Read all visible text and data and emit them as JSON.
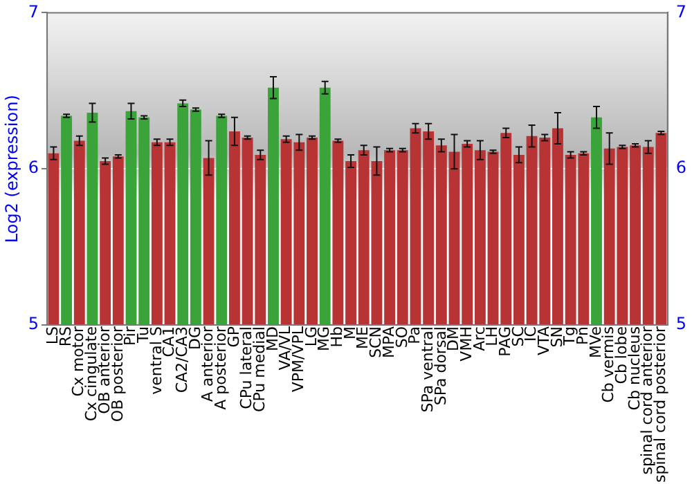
{
  "chart_data": {
    "type": "bar",
    "ylabel": "Log2 (expression)",
    "categories": [
      "LS",
      "RS",
      "Cx motor",
      "Cx cingulate",
      "OB anterior",
      "OB posterior",
      "Pir",
      "Tu",
      "ventral S",
      "CA1",
      "CA2/CA3",
      "DG",
      "A anterior",
      "A posterior",
      "GP",
      "CPu lateral",
      "CPu medial",
      "MD",
      "VA/VL",
      "VPM/VPL",
      "LG",
      "MG",
      "Hb",
      "M",
      "ME",
      "SCN",
      "MPA",
      "SO",
      "Pa",
      "SPa ventral",
      "SPa dorsal",
      "DM",
      "VMH",
      "Arc",
      "LH",
      "PAG",
      "SC",
      "IC",
      "VTA",
      "SN",
      "Tg",
      "Pn",
      "MVe",
      "Cb vermis",
      "Cb lobe",
      "Cb nucleus",
      "spinal cord anterior",
      "spinal cord posterior"
    ],
    "values": [
      6.1,
      6.34,
      6.18,
      6.36,
      6.05,
      6.08,
      6.37,
      6.33,
      6.17,
      6.17,
      6.42,
      6.38,
      6.07,
      6.34,
      6.24,
      6.2,
      6.09,
      6.52,
      6.19,
      6.17,
      6.2,
      6.52,
      6.18,
      6.05,
      6.12,
      6.05,
      6.12,
      6.12,
      6.26,
      6.24,
      6.15,
      6.11,
      6.16,
      6.12,
      6.11,
      6.23,
      6.09,
      6.21,
      6.2,
      6.26,
      6.09,
      6.1,
      6.33,
      6.13,
      6.14,
      6.15,
      6.14,
      6.23
    ],
    "errors": [
      0.04,
      0.01,
      0.03,
      0.06,
      0.02,
      0.01,
      0.05,
      0.01,
      0.02,
      0.02,
      0.02,
      0.01,
      0.11,
      0.01,
      0.09,
      0.01,
      0.03,
      0.07,
      0.02,
      0.05,
      0.01,
      0.04,
      0.01,
      0.04,
      0.03,
      0.09,
      0.01,
      0.01,
      0.03,
      0.05,
      0.04,
      0.11,
      0.02,
      0.06,
      0.01,
      0.03,
      0.05,
      0.07,
      0.02,
      0.1,
      0.02,
      0.01,
      0.07,
      0.1,
      0.01,
      0.01,
      0.04,
      0.01
    ],
    "colors": [
      "#b83434",
      "#3aa33a",
      "#b83434",
      "#3aa33a",
      "#b83434",
      "#b83434",
      "#3aa33a",
      "#3aa33a",
      "#b83434",
      "#b83434",
      "#3aa33a",
      "#3aa33a",
      "#b83434",
      "#3aa33a",
      "#b83434",
      "#b83434",
      "#b83434",
      "#3aa33a",
      "#b83434",
      "#b83434",
      "#b83434",
      "#3aa33a",
      "#b83434",
      "#b83434",
      "#b83434",
      "#b83434",
      "#b83434",
      "#b83434",
      "#b83434",
      "#b83434",
      "#b83434",
      "#b83434",
      "#b83434",
      "#b83434",
      "#b83434",
      "#b83434",
      "#b83434",
      "#b83434",
      "#b83434",
      "#b83434",
      "#b83434",
      "#b83434",
      "#3aa33a",
      "#b83434",
      "#b83434",
      "#b83434",
      "#b83434",
      "#b83434"
    ],
    "ylim": [
      5,
      7
    ],
    "yticks": [
      5,
      6,
      7
    ],
    "y2lim": [
      5,
      7
    ],
    "y2ticks": [
      5,
      6,
      7
    ],
    "grid": "y"
  }
}
